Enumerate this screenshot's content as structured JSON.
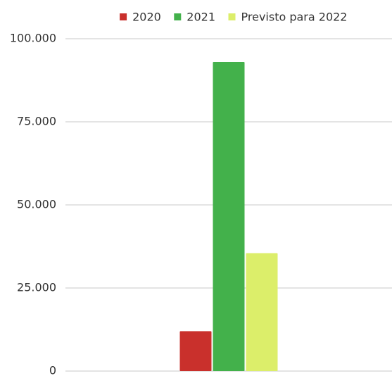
{
  "chart_data": {
    "type": "bar",
    "categories": [
      null
    ],
    "series": [
      {
        "name": "2020",
        "color": "#c9302c",
        "values": [
          12000
        ]
      },
      {
        "name": "2021",
        "color": "#43b14b",
        "values": [
          93000
        ]
      },
      {
        "name": "Previsto para 2022",
        "color": "#dcee6a",
        "values": [
          35500
        ]
      }
    ],
    "ylim": [
      0,
      100000
    ],
    "yticks": [
      0,
      {
        "value": 25000,
        "label": "25.000"
      },
      {
        "value": 50000,
        "label": "50.000"
      },
      {
        "value": 75000,
        "label": "75.000"
      },
      {
        "value": 100000,
        "label": "100.000"
      }
    ],
    "grid": true,
    "legend": "top"
  }
}
